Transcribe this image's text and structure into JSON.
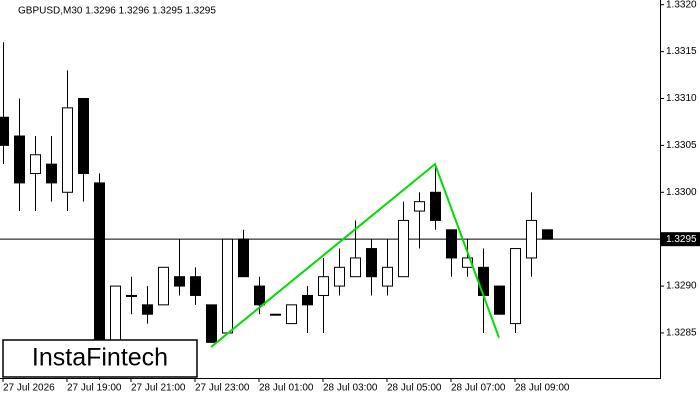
{
  "chart_data": {
    "type": "candlestick",
    "title": "GBPUSD,M30  1.3296 1.3296 1.3295 1.3295",
    "categories": [
      "27 Jul 2026",
      null,
      null,
      null,
      "27 Jul 19:00",
      null,
      null,
      null,
      "27 Jul 21:00",
      null,
      null,
      null,
      "27 Jul 23:00",
      null,
      null,
      null,
      "28 Jul 01:00",
      null,
      null,
      null,
      "28 Jul 03:00",
      null,
      null,
      null,
      "28 Jul 05:00",
      null,
      null,
      null,
      "28 Jul 07:00",
      null,
      null,
      null,
      "28 Jul 09:00",
      null,
      null
    ],
    "open": [
      1.3308,
      1.3306,
      1.3302,
      1.3303,
      1.33,
      1.331,
      1.3301,
      1.3284,
      1.3289,
      1.3288,
      1.3288,
      1.3291,
      1.3291,
      1.3288,
      1.3285,
      1.3295,
      1.329,
      1.3287,
      1.3286,
      1.3289,
      1.3289,
      1.329,
      1.3291,
      1.3294,
      1.329,
      1.3291,
      1.3298,
      1.33,
      1.3296,
      1.3292,
      1.3292,
      1.329,
      1.3286,
      1.3293,
      1.3296
    ],
    "high": [
      1.3316,
      1.331,
      1.3306,
      1.3306,
      1.3313,
      1.331,
      1.3302,
      1.329,
      1.3291,
      1.329,
      1.3292,
      1.3295,
      1.3292,
      1.3288,
      1.3295,
      1.3296,
      1.3291,
      1.3287,
      1.3288,
      1.329,
      1.3293,
      1.3294,
      1.3297,
      1.3295,
      1.3295,
      1.3299,
      1.33,
      1.3303,
      1.3296,
      1.3295,
      1.3294,
      1.329,
      1.3294,
      1.33,
      1.3296
    ],
    "low": [
      1.3303,
      1.3298,
      1.3298,
      1.3299,
      1.3298,
      1.3299,
      1.328,
      1.3282,
      1.3287,
      1.3286,
      1.3288,
      1.3289,
      1.3288,
      1.3284,
      1.3285,
      1.3291,
      1.3287,
      1.3287,
      1.3286,
      1.3285,
      1.3285,
      1.3289,
      1.3291,
      1.3289,
      1.3289,
      1.3291,
      1.3294,
      1.3296,
      1.3291,
      1.3291,
      1.3285,
      1.3287,
      1.3285,
      1.3291,
      1.3295
    ],
    "close": [
      1.3305,
      1.3301,
      1.3304,
      1.3301,
      1.3309,
      1.3302,
      1.3281,
      1.329,
      1.3289,
      1.3287,
      1.3292,
      1.329,
      1.3289,
      1.3284,
      1.3295,
      1.3291,
      1.3288,
      1.3287,
      1.3288,
      1.3288,
      1.3291,
      1.3292,
      1.3293,
      1.3291,
      1.3292,
      1.3297,
      1.3299,
      1.3297,
      1.3293,
      1.3293,
      1.3289,
      1.3287,
      1.3294,
      1.3297,
      1.3295
    ],
    "ylim": [
      1.32802,
      1.33205
    ],
    "yticks": [
      {
        "value": 1.332,
        "label": "1.3320"
      },
      1.3315,
      {
        "value": 1.331,
        "label": "1.3310"
      },
      1.3305,
      {
        "value": 1.33,
        "label": "1.3300"
      },
      {
        "value": 1.329,
        "label": "1.3290"
      },
      1.3285
    ],
    "current_price": 1.3295,
    "pattern": {
      "color": "#00dd00",
      "x": [
        13,
        27,
        31
      ],
      "values": [
        1.32835,
        1.3303,
        1.32845
      ]
    },
    "watermark": "InstaFintech"
  }
}
